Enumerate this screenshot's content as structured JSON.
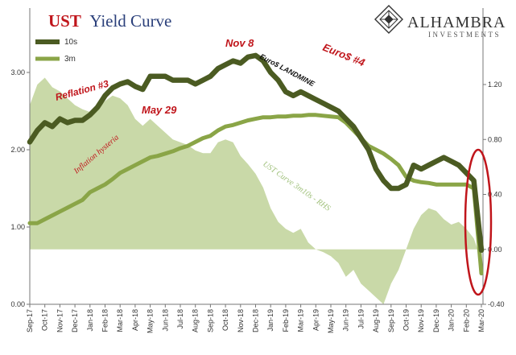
{
  "title": {
    "ust": "UST",
    "rest": "Yield Curve"
  },
  "logo": {
    "name": "ALHAMBRA",
    "sub": "INVESTMENTS"
  },
  "colors": {
    "series_10s": "#4b5b22",
    "series_3m": "#8aa547",
    "curve_area": "#c9d9a8",
    "annotation_red": "#c0151b",
    "ellipse": "#c0151b"
  },
  "legend": [
    {
      "name": "10s"
    },
    {
      "name": "3m"
    }
  ],
  "annotations": {
    "nov8": "Nov 8",
    "reflation": "Reflation #3",
    "landmine": "Euro$ LANDMINE",
    "euro4": "Euro$ #4",
    "may29": "May 29",
    "inflation": "Inflation hysteria",
    "curve_rhs": "UST Curve 3m10s - RHS"
  },
  "chart_data": {
    "type": "line",
    "x_tick_labels": [
      "Sep-17",
      "Oct-17",
      "Nov-17",
      "Dec-17",
      "Jan-18",
      "Feb-18",
      "Mar-18",
      "Apr-18",
      "May-18",
      "Jun-18",
      "Jul-18",
      "Aug-18",
      "Sep-18",
      "Oct-18",
      "Nov-18",
      "Dec-18",
      "Jan-19",
      "Feb-19",
      "Mar-19",
      "Apr-19",
      "May-19",
      "Jun-19",
      "Jul-19",
      "Aug-19",
      "Sep-19",
      "Oct-19",
      "Nov-19",
      "Dec-19",
      "Jan-20",
      "Feb-20",
      "Mar-20"
    ],
    "y_left": {
      "ticks": [
        "0.00",
        "1.00",
        "2.00",
        "3.00"
      ],
      "range": [
        0,
        3.0
      ]
    },
    "y_right": {
      "ticks": [
        "-0.40",
        "0.00",
        "0.40",
        "0.80",
        "1.20"
      ],
      "range": [
        -0.4,
        1.2
      ]
    },
    "series": [
      {
        "name": "10s",
        "axis": "left",
        "x": [
          0,
          0.5,
          1,
          1.5,
          2,
          2.5,
          3,
          3.5,
          4,
          4.5,
          5,
          5.5,
          6,
          6.5,
          7,
          7.5,
          8,
          8.5,
          9,
          9.5,
          10,
          10.5,
          11,
          11.5,
          12,
          12.5,
          13,
          13.5,
          14,
          14.5,
          15,
          15.5,
          16,
          16.5,
          17,
          17.5,
          18,
          18.5,
          19,
          19.5,
          20,
          20.5,
          21,
          21.5,
          22,
          22.5,
          23,
          23.5,
          24,
          24.5,
          25,
          25.5,
          26,
          26.5,
          27,
          27.5,
          28,
          28.5,
          29,
          29.5,
          30
        ],
        "values": [
          2.1,
          2.25,
          2.35,
          2.3,
          2.4,
          2.35,
          2.38,
          2.38,
          2.45,
          2.55,
          2.7,
          2.8,
          2.85,
          2.88,
          2.82,
          2.78,
          2.95,
          2.95,
          2.95,
          2.9,
          2.9,
          2.9,
          2.85,
          2.9,
          2.95,
          3.05,
          3.1,
          3.15,
          3.12,
          3.2,
          3.22,
          3.15,
          3.0,
          2.9,
          2.75,
          2.7,
          2.75,
          2.7,
          2.65,
          2.6,
          2.55,
          2.5,
          2.4,
          2.3,
          2.15,
          2.0,
          1.75,
          1.6,
          1.5,
          1.5,
          1.55,
          1.8,
          1.75,
          1.8,
          1.85,
          1.9,
          1.85,
          1.8,
          1.7,
          1.6,
          0.7
        ]
      },
      {
        "name": "3m",
        "axis": "left",
        "x": [
          0,
          0.5,
          1,
          1.5,
          2,
          2.5,
          3,
          3.5,
          4,
          4.5,
          5,
          5.5,
          6,
          6.5,
          7,
          7.5,
          8,
          8.5,
          9,
          9.5,
          10,
          10.5,
          11,
          11.5,
          12,
          12.5,
          13,
          13.5,
          14,
          14.5,
          15,
          15.5,
          16,
          16.5,
          17,
          17.5,
          18,
          18.5,
          19,
          19.5,
          20,
          20.5,
          21,
          21.5,
          22,
          22.5,
          23,
          23.5,
          24,
          24.5,
          25,
          25.5,
          26,
          26.5,
          27,
          27.5,
          28,
          28.5,
          29,
          29.5,
          30
        ],
        "values": [
          1.05,
          1.05,
          1.1,
          1.15,
          1.2,
          1.25,
          1.3,
          1.35,
          1.45,
          1.5,
          1.55,
          1.62,
          1.7,
          1.75,
          1.8,
          1.85,
          1.9,
          1.92,
          1.95,
          1.98,
          2.02,
          2.05,
          2.1,
          2.15,
          2.18,
          2.25,
          2.3,
          2.32,
          2.35,
          2.38,
          2.4,
          2.42,
          2.42,
          2.43,
          2.43,
          2.44,
          2.44,
          2.45,
          2.45,
          2.44,
          2.43,
          2.42,
          2.35,
          2.25,
          2.15,
          2.05,
          2.0,
          1.95,
          1.88,
          1.8,
          1.65,
          1.6,
          1.58,
          1.57,
          1.55,
          1.55,
          1.55,
          1.55,
          1.55,
          1.5,
          0.4
        ]
      },
      {
        "name": "UST Curve 3m10s - RHS",
        "axis": "right",
        "type": "area",
        "x": [
          0,
          0.5,
          1,
          1.5,
          2,
          2.5,
          3,
          3.5,
          4,
          4.5,
          5,
          5.5,
          6,
          6.5,
          7,
          7.5,
          8,
          8.5,
          9,
          9.5,
          10,
          10.5,
          11,
          11.5,
          12,
          12.5,
          13,
          13.5,
          14,
          14.5,
          15,
          15.5,
          16,
          16.5,
          17,
          17.5,
          18,
          18.5,
          19,
          19.5,
          20,
          20.5,
          21,
          21.5,
          22,
          22.5,
          23,
          23.5,
          24,
          24.5,
          25,
          25.5,
          26,
          26.5,
          27,
          27.5,
          28,
          28.5,
          29,
          29.5,
          30
        ],
        "values": [
          1.05,
          1.2,
          1.25,
          1.18,
          1.15,
          1.1,
          1.05,
          1.02,
          1.0,
          1.02,
          1.08,
          1.12,
          1.1,
          1.05,
          0.95,
          0.9,
          0.95,
          0.9,
          0.85,
          0.8,
          0.78,
          0.76,
          0.72,
          0.7,
          0.7,
          0.78,
          0.8,
          0.78,
          0.68,
          0.62,
          0.55,
          0.45,
          0.3,
          0.2,
          0.15,
          0.12,
          0.15,
          0.05,
          0.0,
          -0.02,
          -0.05,
          -0.1,
          -0.2,
          -0.15,
          -0.25,
          -0.3,
          -0.35,
          -0.4,
          -0.25,
          -0.15,
          0.0,
          0.15,
          0.25,
          0.3,
          0.28,
          0.22,
          0.18,
          0.2,
          0.15,
          0.08,
          -0.08
        ]
      }
    ],
    "grid": false,
    "legend_position": "top-left"
  }
}
